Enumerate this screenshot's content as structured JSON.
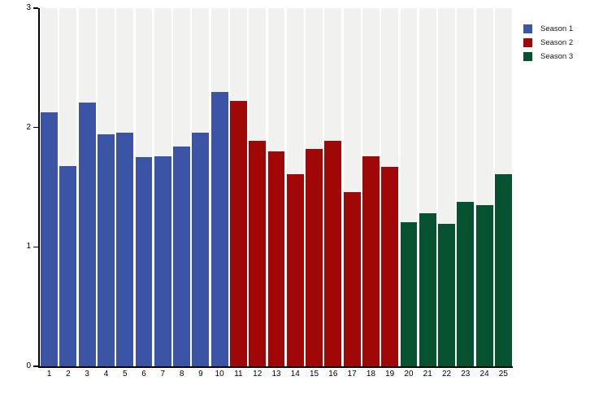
{
  "page": {
    "background_color": "#ffffff",
    "band_color": "#f1f1f0",
    "axis_color": "#000000"
  },
  "chart_data": {
    "type": "bar",
    "title": "",
    "xlabel": "",
    "ylabel": "",
    "categories": [
      "1",
      "2",
      "3",
      "4",
      "5",
      "6",
      "7",
      "8",
      "9",
      "10",
      "11",
      "12",
      "13",
      "14",
      "15",
      "16",
      "17",
      "18",
      "19",
      "20",
      "21",
      "22",
      "23",
      "24",
      "25"
    ],
    "values": [
      2.13,
      1.68,
      2.21,
      1.94,
      1.96,
      1.75,
      1.76,
      1.84,
      1.96,
      2.3,
      2.22,
      1.89,
      1.8,
      1.61,
      1.82,
      1.89,
      1.46,
      1.76,
      1.67,
      1.21,
      1.28,
      1.19,
      1.38,
      1.35,
      1.61
    ],
    "groups": [
      {
        "name": "Season 1",
        "color": "#3b54a5",
        "from": 1,
        "to": 10
      },
      {
        "name": "Season 2",
        "color": "#a00808",
        "from": 11,
        "to": 19
      },
      {
        "name": "Season 3",
        "color": "#06512f",
        "from": 20,
        "to": 25
      }
    ],
    "ylim": [
      0,
      3
    ],
    "yticks": [
      "0",
      "1",
      "2",
      "3"
    ],
    "grid": "vertical-bands",
    "legend": {
      "position": "top-right",
      "entries": [
        {
          "label": "Season 1",
          "color": "#3b54a5"
        },
        {
          "label": "Season 2",
          "color": "#a00808"
        },
        {
          "label": "Season 3",
          "color": "#06512f"
        }
      ]
    }
  }
}
